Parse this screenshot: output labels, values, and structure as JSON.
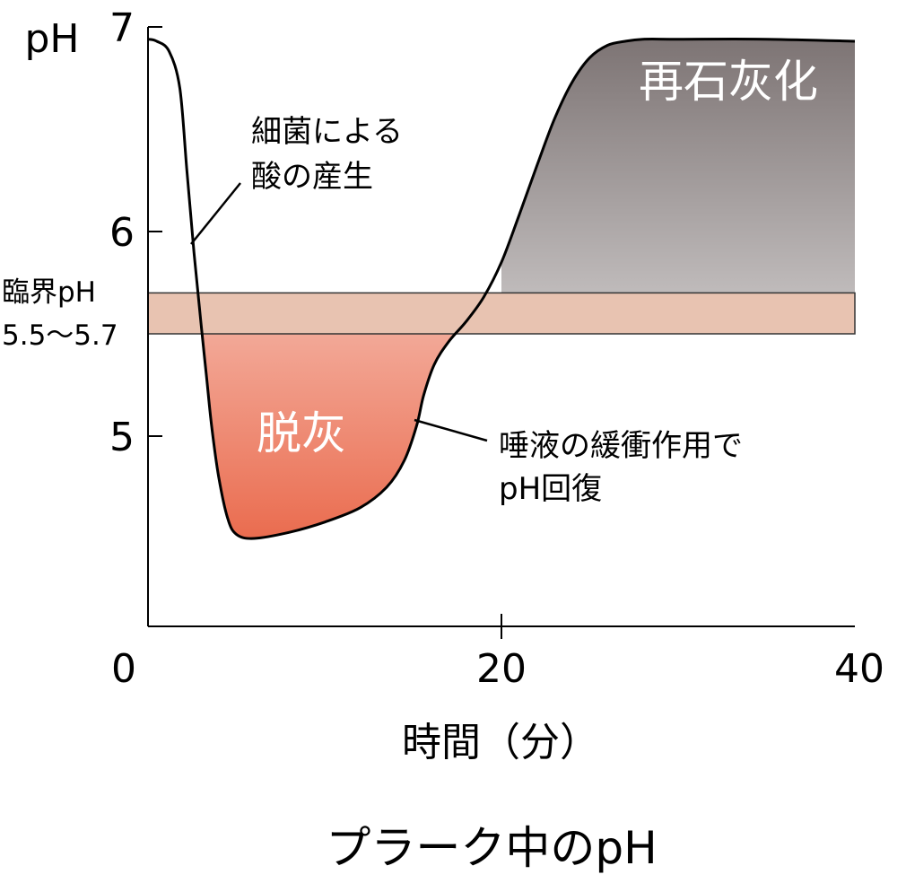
{
  "chart_data": {
    "type": "line",
    "title": "プラーク中のpH",
    "xlabel": "時間（分）",
    "ylabel": "pH",
    "xlim": [
      0,
      40
    ],
    "ylim": [
      4.1,
      7.0
    ],
    "x_ticks": [
      "0",
      "20",
      "40"
    ],
    "y_ticks": [
      "7",
      "6",
      "5"
    ],
    "grid": false,
    "series": [
      {
        "x": [
          0,
          0.5,
          1.2,
          1.8,
          2.2,
          2.6,
          3.0,
          3.3,
          3.6,
          4.0,
          4.5,
          5.0,
          6.0,
          8.0,
          10.0,
          12.0,
          13.5,
          14.5,
          15.2,
          15.6,
          16.2,
          17.0,
          18.0,
          19.0,
          20.0,
          21.0,
          22.0,
          23.0,
          24.0,
          25.0,
          26.0,
          27.0,
          28.0,
          30.0,
          35.0,
          40.0
        ],
        "y": [
          6.94,
          6.93,
          6.88,
          6.7,
          6.3,
          5.9,
          5.55,
          5.3,
          5.05,
          4.8,
          4.6,
          4.52,
          4.5,
          4.53,
          4.58,
          4.65,
          4.75,
          4.88,
          5.05,
          5.2,
          5.35,
          5.46,
          5.56,
          5.68,
          5.85,
          6.08,
          6.32,
          6.55,
          6.73,
          6.85,
          6.91,
          6.93,
          6.94,
          6.94,
          6.94,
          6.93
        ]
      }
    ],
    "critical_band": {
      "label": "臨界pH",
      "range_label": "5.5〜5.7",
      "range": [
        5.5,
        5.7
      ],
      "color": "#e8c3b1"
    },
    "regions": [
      {
        "label": "再石灰化",
        "color_top": "#7d7474",
        "color_bottom": "#ffffff"
      },
      {
        "label": "脱灰",
        "color_top": "#ffffff",
        "color_bottom": "#ea6c4f"
      }
    ],
    "annotations": [
      {
        "lines": [
          "細菌による",
          "酸の産生"
        ]
      },
      {
        "lines": [
          "唾液の緩衝作用で",
          "pH回復"
        ]
      }
    ]
  }
}
